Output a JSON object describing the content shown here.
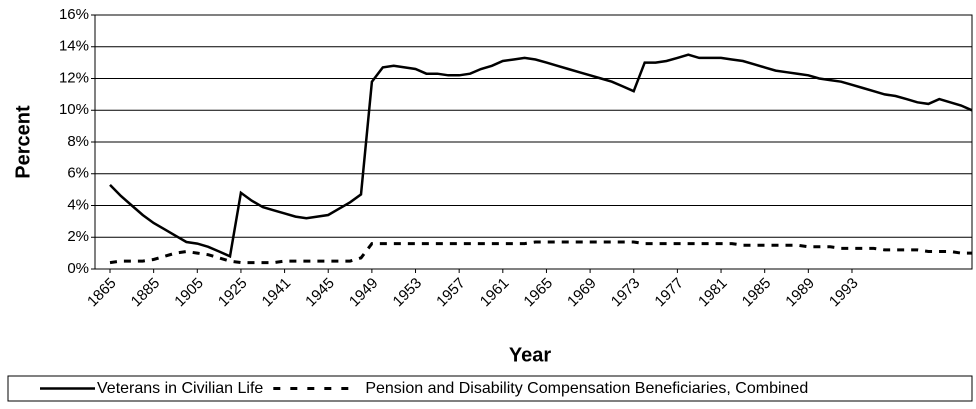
{
  "chart_data": {
    "type": "line",
    "xlabel": "Year",
    "ylabel": "Percent",
    "categories": [
      1865,
      null,
      null,
      null,
      1885,
      null,
      null,
      null,
      1905,
      null,
      null,
      null,
      1925,
      null,
      null,
      null,
      1941,
      null,
      null,
      null,
      1945,
      null,
      null,
      null,
      1949,
      null,
      null,
      null,
      1953,
      null,
      null,
      null,
      1957,
      null,
      null,
      null,
      1961,
      null,
      null,
      null,
      1965,
      null,
      null,
      null,
      1969,
      null,
      null,
      null,
      1973,
      null,
      null,
      null,
      1977,
      null,
      null,
      null,
      1981,
      null,
      null,
      null,
      1985,
      null,
      null,
      null,
      1989,
      null,
      null,
      null,
      1993,
      null,
      null,
      null,
      null,
      null,
      null,
      null,
      null,
      null,
      null,
      null
    ],
    "series": [
      {
        "name": "Veterans in Civilian Life",
        "color": "#000000",
        "dash": false,
        "values": [
          5.3,
          4.6,
          4.0,
          3.4,
          2.9,
          2.5,
          2.1,
          1.7,
          1.6,
          1.4,
          1.1,
          0.8,
          4.8,
          4.3,
          3.9,
          3.7,
          3.5,
          3.3,
          3.2,
          3.3,
          3.4,
          3.8,
          4.2,
          4.7,
          11.8,
          12.7,
          12.8,
          12.7,
          12.6,
          12.3,
          12.3,
          12.2,
          12.2,
          12.3,
          12.6,
          12.8,
          13.1,
          13.2,
          13.3,
          13.2,
          13.0,
          12.8,
          12.6,
          12.4,
          12.2,
          12.0,
          11.8,
          11.5,
          11.2,
          13.0,
          13.0,
          13.1,
          13.3,
          13.5,
          13.3,
          13.3,
          13.3,
          13.2,
          13.1,
          12.9,
          12.7,
          12.5,
          12.4,
          12.3,
          12.2,
          12.0,
          11.9,
          11.8,
          11.6,
          11.4,
          11.2,
          11.0,
          10.9,
          10.7,
          10.5,
          10.4,
          10.7,
          10.5,
          10.3,
          10.0
        ]
      },
      {
        "name": "Pension and Disability Compensation Beneficiaries, Combined",
        "color": "#000000",
        "dash": true,
        "values": [
          0.4,
          0.5,
          0.5,
          0.5,
          0.6,
          0.8,
          1.0,
          1.1,
          1.0,
          0.9,
          0.7,
          0.5,
          0.4,
          0.4,
          0.4,
          0.4,
          0.5,
          0.5,
          0.5,
          0.5,
          0.5,
          0.5,
          0.5,
          0.7,
          1.6,
          1.6,
          1.6,
          1.6,
          1.6,
          1.6,
          1.6,
          1.6,
          1.6,
          1.6,
          1.6,
          1.6,
          1.6,
          1.6,
          1.6,
          1.7,
          1.7,
          1.7,
          1.7,
          1.7,
          1.7,
          1.7,
          1.7,
          1.7,
          1.7,
          1.6,
          1.6,
          1.6,
          1.6,
          1.6,
          1.6,
          1.6,
          1.6,
          1.6,
          1.5,
          1.5,
          1.5,
          1.5,
          1.5,
          1.5,
          1.4,
          1.4,
          1.4,
          1.3,
          1.3,
          1.3,
          1.3,
          1.2,
          1.2,
          1.2,
          1.2,
          1.1,
          1.1,
          1.1,
          1.0,
          1.0
        ]
      }
    ],
    "ylim": [
      0,
      16
    ],
    "yticks": [
      {
        "value": 0,
        "label": "0%"
      },
      {
        "value": 2,
        "label": "2%"
      },
      {
        "value": 4,
        "label": "4%"
      },
      {
        "value": 6,
        "label": "6%"
      },
      {
        "value": 8,
        "label": "8%"
      },
      {
        "value": 10,
        "label": "10%"
      },
      {
        "value": 12,
        "label": "12%"
      },
      {
        "value": 14,
        "label": "14%"
      },
      {
        "value": 16,
        "label": "16%"
      }
    ],
    "grid": true,
    "legend": "bottom"
  }
}
